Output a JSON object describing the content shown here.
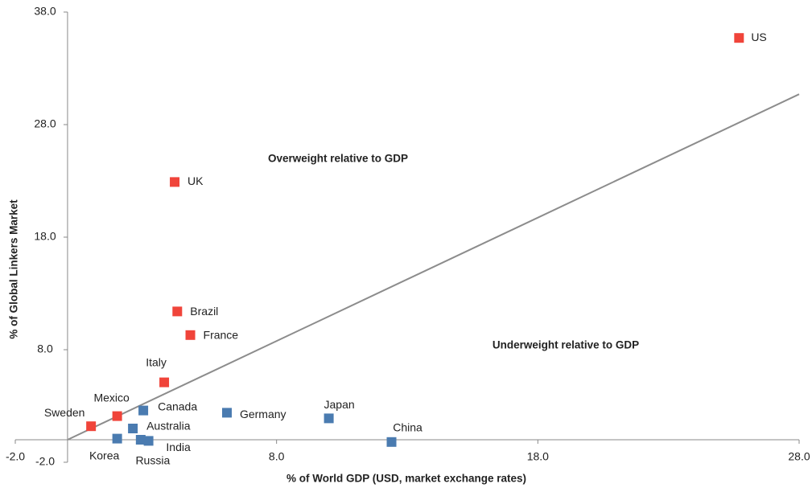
{
  "chart_data": {
    "type": "scatter",
    "x_label": "% of World GDP (USD, market exchange rates)",
    "y_label": "% of Global Linkers Market",
    "annotations": [
      "Overweight relative to GDP",
      "Underweight relative to GDP"
    ],
    "xlim": [
      -2,
      28
    ],
    "ylim": [
      -2,
      38
    ],
    "xticks": [
      {
        "value": -2,
        "label": "-2.0"
      },
      {
        "value": 8,
        "label": "8.0"
      },
      {
        "value": 18,
        "label": "18.0"
      },
      {
        "value": 28,
        "label": "28.0"
      }
    ],
    "yticks": [
      {
        "value": -2,
        "label": "-2.0"
      },
      {
        "value": 8,
        "label": "8.0"
      },
      {
        "value": 18,
        "label": "18.0"
      },
      {
        "value": 28,
        "label": "28.0"
      },
      {
        "value": 38,
        "label": "38.0"
      }
    ],
    "reference_line": {
      "x": [
        0,
        28
      ],
      "y": [
        0,
        30.7
      ],
      "color": "#8c8c8c"
    },
    "series": [
      {
        "color": "#f0443a",
        "labels": [
          "US",
          "UK",
          "Brazil",
          "France",
          "Italy",
          "Mexico",
          "Sweden"
        ],
        "x": [
          25.7,
          4.1,
          4.2,
          4.7,
          3.7,
          1.9,
          0.9
        ],
        "values": [
          35.7,
          22.9,
          11.4,
          9.3,
          5.1,
          2.1,
          1.2
        ]
      },
      {
        "color": "#4a7bb0",
        "labels": [
          "Canada",
          "Germany",
          "Japan",
          "China",
          "Australia",
          "Korea",
          "India",
          "Russia"
        ],
        "x": [
          2.9,
          6.1,
          10.0,
          12.4,
          2.5,
          1.9,
          3.1,
          2.8
        ],
        "values": [
          2.6,
          2.4,
          1.9,
          -0.2,
          1.0,
          0.1,
          -0.1,
          0.0
        ]
      }
    ]
  }
}
